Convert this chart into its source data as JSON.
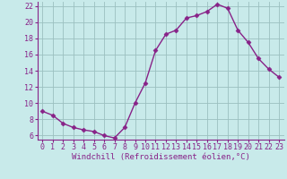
{
  "x": [
    0,
    1,
    2,
    3,
    4,
    5,
    6,
    7,
    8,
    9,
    10,
    11,
    12,
    13,
    14,
    15,
    16,
    17,
    18,
    19,
    20,
    21,
    22,
    23
  ],
  "y": [
    9.0,
    8.5,
    7.5,
    7.0,
    6.7,
    6.5,
    6.0,
    5.7,
    7.0,
    10.0,
    12.5,
    16.5,
    18.5,
    19.0,
    20.5,
    20.8,
    21.3,
    22.2,
    21.7,
    19.0,
    17.5,
    15.5,
    14.2,
    13.2
  ],
  "line_color": "#882288",
  "marker": "D",
  "markersize": 2.5,
  "bg_color": "#c8eaea",
  "grid_color": "#9bbfbf",
  "xlabel": "Windchill (Refroidissement éolien,°C)",
  "xlabel_color": "#882288",
  "tick_color": "#882288",
  "axis_color": "#882288",
  "ylim": [
    5.5,
    22.5
  ],
  "xlim": [
    -0.5,
    23.5
  ],
  "yticks": [
    6,
    8,
    10,
    12,
    14,
    16,
    18,
    20,
    22
  ],
  "xticks": [
    0,
    1,
    2,
    3,
    4,
    5,
    6,
    7,
    8,
    9,
    10,
    11,
    12,
    13,
    14,
    15,
    16,
    17,
    18,
    19,
    20,
    21,
    22,
    23
  ],
  "label_fontsize": 6.5,
  "tick_fontsize": 6.0
}
